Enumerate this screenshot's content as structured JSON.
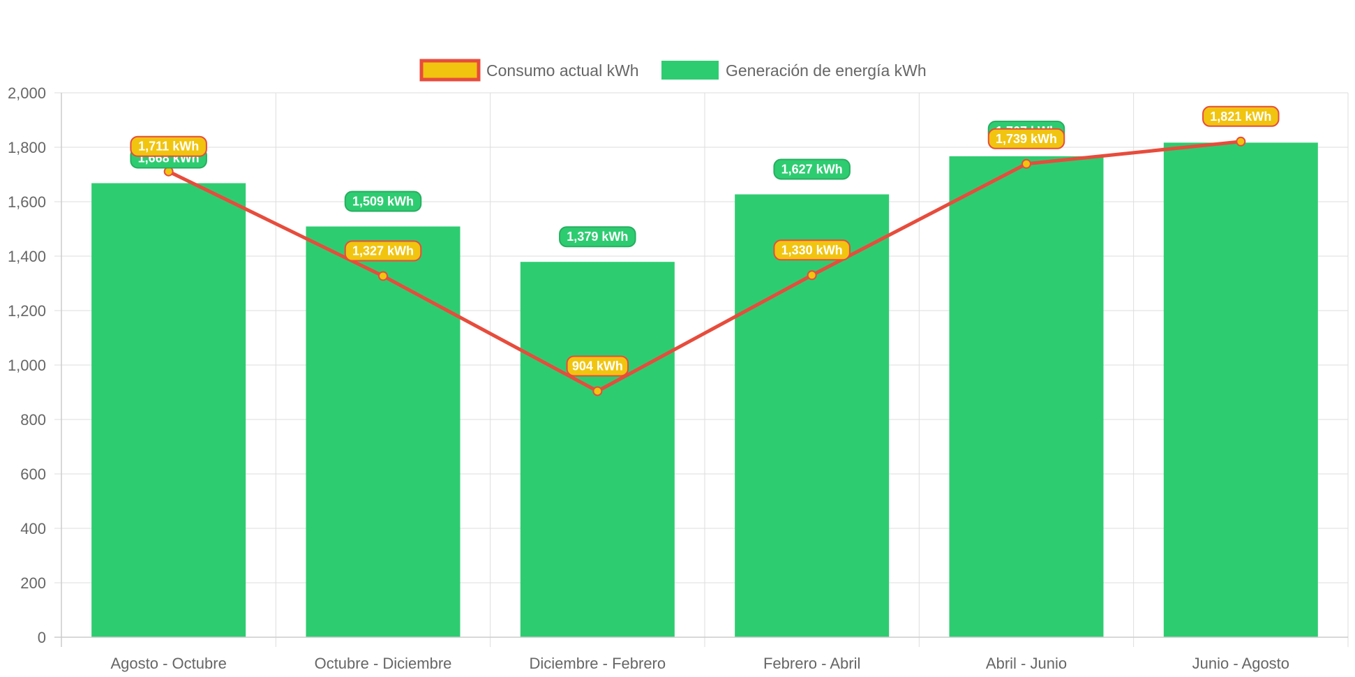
{
  "colors": {
    "generation": "#2ecc71",
    "generation_label_border": "#27ae60",
    "consumption_line": "#e74c3c",
    "consumption_fill": "#f1c40f",
    "grid": "#dddddd",
    "tick_text": "#666666"
  },
  "chart_data": {
    "type": "bar",
    "title": "",
    "xlabel": "",
    "ylabel": "",
    "ylim": [
      0,
      2000
    ],
    "y_ticks": [
      "0",
      "200",
      "400",
      "600",
      "800",
      "1,000",
      "1,200",
      "1,400",
      "1,600",
      "1,800",
      "2,000"
    ],
    "y_tick_values": [
      0,
      200,
      400,
      600,
      800,
      1000,
      1200,
      1400,
      1600,
      1800,
      2000
    ],
    "grid": true,
    "legend_position": "top",
    "categories": [
      "Agosto - Octubre",
      "Octubre - Diciembre",
      "Diciembre - Febrero",
      "Febrero - Abril",
      "Abril - Junio",
      "Junio - Agosto"
    ],
    "series": [
      {
        "name": "Consumo actual kWh",
        "type": "line",
        "values": [
          1711,
          1327,
          904,
          1330,
          1739,
          1821
        ],
        "labels": [
          "1,711 kWh",
          "1,327 kWh",
          "904 kWh",
          "1,330 kWh",
          "1,739 kWh",
          "1,821 kWh"
        ]
      },
      {
        "name": "Generación de energía kWh",
        "type": "bar",
        "values": [
          1668,
          1509,
          1379,
          1627,
          1767,
          1817
        ],
        "labels": [
          "1,668 kWh",
          "1,509 kWh",
          "1,379 kWh",
          "1,627 kWh",
          "1,767 kWh",
          ""
        ]
      }
    ]
  }
}
